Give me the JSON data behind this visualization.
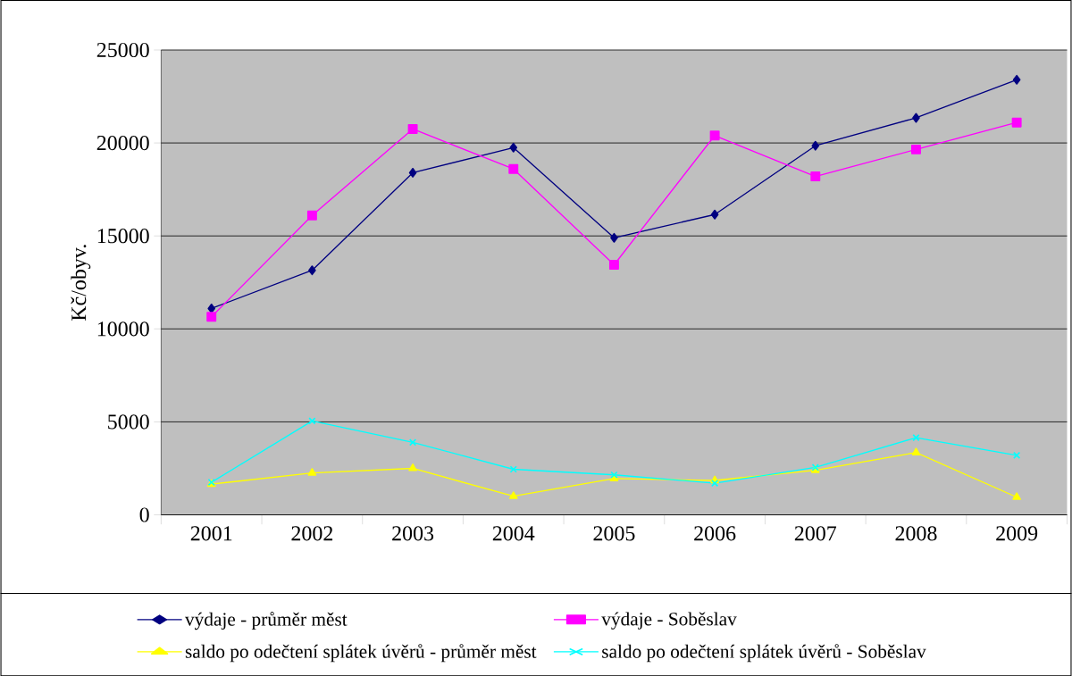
{
  "chart_data": {
    "type": "line",
    "ylabel": "Kč/obyv.",
    "categories": [
      "2001",
      "2002",
      "2003",
      "2004",
      "2005",
      "2006",
      "2007",
      "2008",
      "2009"
    ],
    "series": [
      {
        "name": "výdaje - průměr měst",
        "color": "#000080",
        "marker": "diamond",
        "values": [
          11100,
          13150,
          18400,
          19750,
          14900,
          16150,
          19850,
          21350,
          23400
        ]
      },
      {
        "name": "výdaje - Soběslav",
        "color": "#ff00ff",
        "marker": "square",
        "values": [
          10650,
          16100,
          20750,
          18600,
          13450,
          20400,
          18200,
          19650,
          21100
        ]
      },
      {
        "name": "saldo po odečtení splátek úvěrů - průměr měst",
        "color": "#ffff00",
        "marker": "triangle",
        "values": [
          1650,
          2250,
          2500,
          1000,
          1950,
          1850,
          2400,
          3350,
          950
        ]
      },
      {
        "name": "saldo po odečtení splátek úvěrů - Soběslav",
        "color": "#00ffff",
        "marker": "cross",
        "values": [
          1750,
          5050,
          3900,
          2450,
          2150,
          1700,
          2550,
          4150,
          3200
        ]
      }
    ],
    "ylim": [
      0,
      25000
    ],
    "yticks": [
      0,
      5000,
      10000,
      15000,
      20000,
      25000
    ],
    "grid": "y",
    "legend": "bottom"
  }
}
